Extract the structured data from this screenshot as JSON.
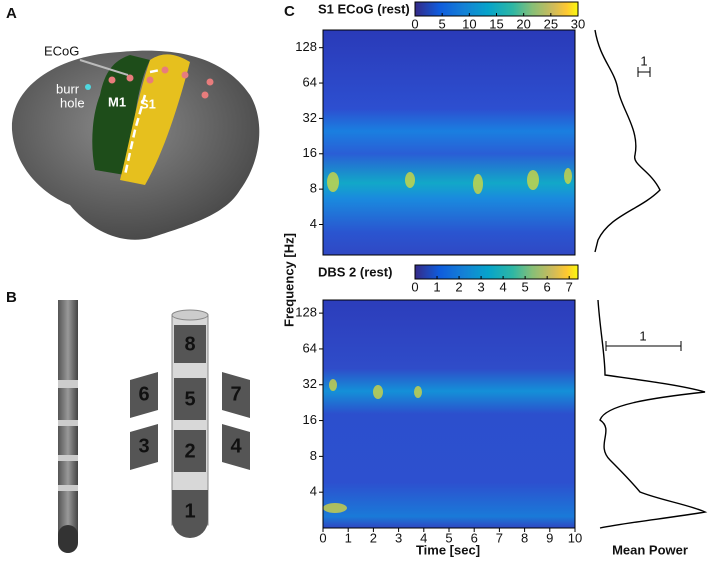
{
  "panel_a": {
    "label": "A",
    "ecog": "ECoG",
    "burr_hole": [
      "burr",
      "hole"
    ],
    "m1": "M1",
    "s1": "S1"
  },
  "panel_b": {
    "label": "B",
    "contacts": [
      "8",
      "6",
      "5",
      "7",
      "3",
      "2",
      "4",
      "1"
    ]
  },
  "panel_c": {
    "label": "C",
    "y_label": "Frequency [Hz]",
    "x_label": "Time [sec]",
    "side_label": "Mean Power",
    "xlim": [
      0,
      10
    ],
    "xticks": [
      0,
      1,
      2,
      3,
      4,
      5,
      6,
      7,
      8,
      9,
      10
    ],
    "spectrograms": [
      {
        "title": "S1 ECoG (rest)",
        "clim": [
          0,
          30
        ],
        "colorbar_ticks": [
          0,
          5,
          10,
          15,
          20,
          25,
          30
        ],
        "ylim": [
          2.2,
          181
        ],
        "yticks": [
          4,
          8,
          16,
          32,
          64,
          128
        ],
        "scale_label": "1"
      },
      {
        "title": "DBS 2 (rest)",
        "clim": [
          0,
          7.4
        ],
        "colorbar_ticks": [
          0,
          1,
          2,
          3,
          4,
          5,
          6,
          7
        ],
        "ylim": [
          2,
          165
        ],
        "yticks": [
          4,
          8,
          16,
          32,
          64,
          128
        ],
        "scale_label": "1"
      }
    ]
  }
}
